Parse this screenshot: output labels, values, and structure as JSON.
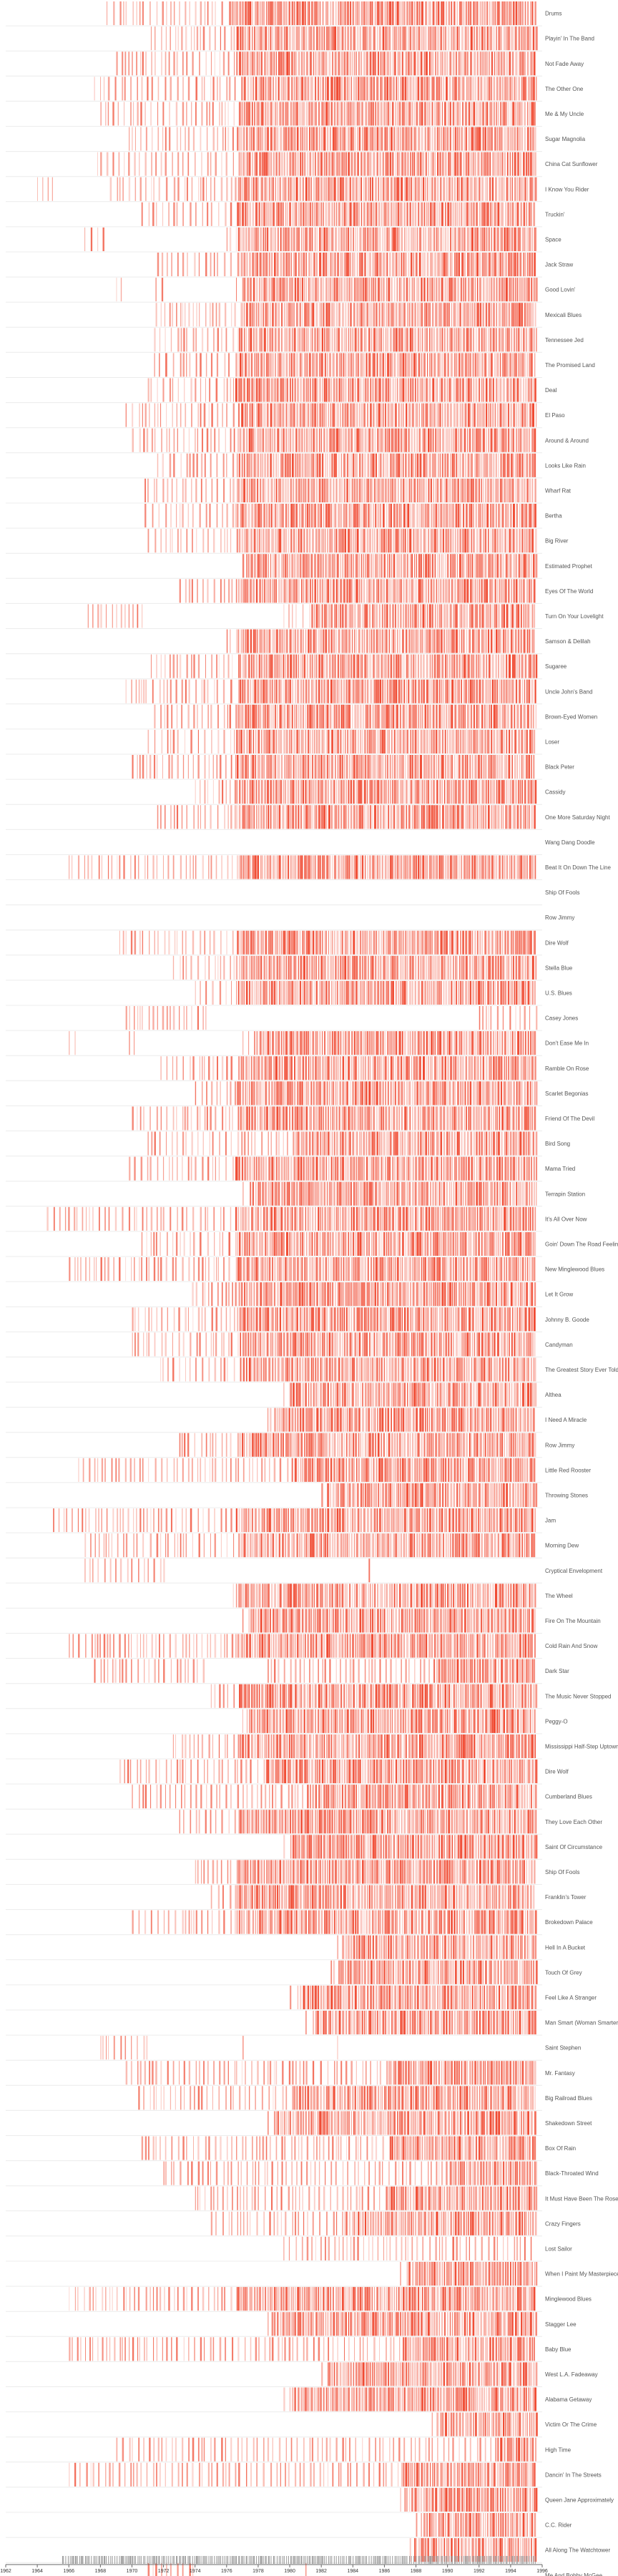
{
  "chart_data": {
    "type": "heatmap",
    "mark_color": "#f04a32",
    "rug_color": "#999999",
    "label_color": "#555555",
    "xlim": [
      1962,
      1996
    ],
    "x_ticks": [
      {
        "value": 1962,
        "label": "1962"
      },
      {
        "value": 1964,
        "label": "1964"
      },
      {
        "value": 1966,
        "label": "1966"
      },
      {
        "value": 1968,
        "label": "1968"
      },
      {
        "value": 1970,
        "label": "1970"
      },
      {
        "value": 1972,
        "label": "1972"
      },
      {
        "value": 1974,
        "label": "1974"
      },
      {
        "value": 1976,
        "label": "1976"
      },
      {
        "value": 1978,
        "label": "1978"
      },
      {
        "value": 1980,
        "label": "1980"
      },
      {
        "value": 1982,
        "label": "1982"
      },
      {
        "value": 1984,
        "label": "1984"
      },
      {
        "value": 1986,
        "label": "1986"
      },
      {
        "value": 1988,
        "label": "1988"
      },
      {
        "value": 1990,
        "label": "1990"
      },
      {
        "value": 1992,
        "label": "1992"
      },
      {
        "value": 1994,
        "label": "1994"
      },
      {
        "value": 1996,
        "label": "1996"
      }
    ],
    "series": [
      {
        "name": "Drums",
        "spans": [
          [
            1968.4,
            1995.6
          ]
        ],
        "dense_from": 1976.0
      },
      {
        "name": "Playin' In The Band",
        "spans": [
          [
            1971.2,
            1995.6
          ]
        ],
        "dense_from": 1976.5
      },
      {
        "name": "Not Fade Away",
        "spans": [
          [
            1969.0,
            1995.6
          ]
        ],
        "dense_from": 1976.5
      },
      {
        "name": "The Other One",
        "spans": [
          [
            1967.6,
            1995.6
          ]
        ],
        "dense_from": 1976.5
      },
      {
        "name": "Me & My Uncle",
        "spans": [
          [
            1968.0,
            1995.6
          ]
        ],
        "dense_from": 1976.5
      },
      {
        "name": "Sugar Magnolia",
        "spans": [
          [
            1969.8,
            1995.6
          ]
        ],
        "dense_from": 1976.5
      },
      {
        "name": "China Cat Sunflower",
        "spans": [
          [
            1967.8,
            1995.6
          ]
        ],
        "dense_from": 1976.5
      },
      {
        "name": "I Know You Rider",
        "spans": [
          [
            1964.0,
            1965.0
          ],
          [
            1968.6,
            1995.6
          ]
        ],
        "dense_from": 1976.5
      },
      {
        "name": "Truckin'",
        "spans": [
          [
            1970.6,
            1995.6
          ]
        ],
        "dense_from": 1976.5
      },
      {
        "name": "Space",
        "spans": [
          [
            1967.0,
            1968.4
          ],
          [
            1976.0,
            1995.6
          ]
        ],
        "dense_from": 1976.6
      },
      {
        "name": "Jack Straw",
        "spans": [
          [
            1971.6,
            1995.6
          ]
        ],
        "dense_from": 1976.5
      },
      {
        "name": "Good Lovin'",
        "spans": [
          [
            1969.0,
            1969.6
          ],
          [
            1971.5,
            1972.0
          ],
          [
            1976.6,
            1995.6
          ]
        ],
        "dense_from": 1976.8
      },
      {
        "name": "Mexicali Blues",
        "spans": [
          [
            1971.5,
            1995.6
          ]
        ],
        "dense_from": 1976.5
      },
      {
        "name": "Tennessee Jed",
        "spans": [
          [
            1971.4,
            1995.6
          ]
        ],
        "dense_from": 1976.5
      },
      {
        "name": "The Promised Land",
        "spans": [
          [
            1971.4,
            1995.6
          ]
        ],
        "dense_from": 1976.5
      },
      {
        "name": "Deal",
        "spans": [
          [
            1971.0,
            1995.6
          ]
        ],
        "dense_from": 1976.5
      },
      {
        "name": "El Paso",
        "spans": [
          [
            1969.6,
            1995.6
          ]
        ],
        "dense_from": 1976.5
      },
      {
        "name": "Around & Around",
        "spans": [
          [
            1970.0,
            1995.6
          ]
        ],
        "dense_from": 1976.5
      },
      {
        "name": "Looks Like Rain",
        "spans": [
          [
            1971.6,
            1995.6
          ]
        ],
        "dense_from": 1976.5
      },
      {
        "name": "Wharf Rat",
        "spans": [
          [
            1970.8,
            1995.6
          ]
        ],
        "dense_from": 1976.5
      },
      {
        "name": "Bertha",
        "spans": [
          [
            1970.8,
            1995.6
          ]
        ],
        "dense_from": 1976.5
      },
      {
        "name": "Big River",
        "spans": [
          [
            1971.0,
            1995.6
          ]
        ],
        "dense_from": 1976.5
      },
      {
        "name": "Estimated Prophet",
        "spans": [
          [
            1977.0,
            1995.6
          ]
        ],
        "dense_from": 1977.2
      },
      {
        "name": "Eyes Of The World",
        "spans": [
          [
            1973.0,
            1995.6
          ]
        ],
        "dense_from": 1976.5
      },
      {
        "name": "Turn On Your Lovelight",
        "spans": [
          [
            1967.2,
            1971.0
          ],
          [
            1979.6,
            1995.6
          ]
        ],
        "dense_from": 1981.0
      },
      {
        "name": "Samson & Delilah",
        "spans": [
          [
            1976.0,
            1995.6
          ]
        ],
        "dense_from": 1976.5
      },
      {
        "name": "Sugaree",
        "spans": [
          [
            1971.2,
            1995.6
          ]
        ],
        "dense_from": 1976.5
      },
      {
        "name": "Uncle John's Band",
        "spans": [
          [
            1969.6,
            1995.6
          ]
        ],
        "dense_from": 1976.5
      },
      {
        "name": "Brown-Eyed Women",
        "spans": [
          [
            1971.4,
            1995.6
          ]
        ],
        "dense_from": 1976.5
      },
      {
        "name": "Loser",
        "spans": [
          [
            1971.0,
            1995.6
          ]
        ],
        "dense_from": 1976.5
      },
      {
        "name": "Black Peter",
        "spans": [
          [
            1970.0,
            1995.6
          ]
        ],
        "dense_from": 1976.5
      },
      {
        "name": "Cassidy",
        "spans": [
          [
            1974.0,
            1995.6
          ]
        ],
        "dense_from": 1976.5
      },
      {
        "name": "One More Saturday Night",
        "spans": [
          [
            1971.6,
            1995.6
          ]
        ],
        "dense_from": 1976.5
      },
      {
        "name": "Wang Dang Doodle",
        "spans": [],
        "dense_from": 1996.0
      },
      {
        "name": "Beat It On Down The Line",
        "spans": [
          [
            1966.0,
            1995.6
          ]
        ],
        "dense_from": 1976.5
      },
      {
        "name": "Ship Of Fools",
        "spans": [],
        "dense_from": 1996.0
      },
      {
        "name": "Row Jimmy",
        "spans": [],
        "dense_from": 1996.0
      },
      {
        "name": "Dire Wolf",
        "spans": [
          [
            1969.2,
            1995.6
          ]
        ],
        "dense_from": 1976.5
      },
      {
        "name": "Stella Blue",
        "spans": [
          [
            1972.6,
            1995.6
          ]
        ],
        "dense_from": 1976.5
      },
      {
        "name": "U.S. Blues",
        "spans": [
          [
            1974.0,
            1995.6
          ]
        ],
        "dense_from": 1976.5
      },
      {
        "name": "Casey Jones",
        "spans": [
          [
            1969.6,
            1974.8
          ],
          [
            1992.0,
            1995.6
          ]
        ],
        "dense_from": 1996.0
      },
      {
        "name": "Don't Ease Me In",
        "spans": [
          [
            1966.0,
            1966.4
          ],
          [
            1969.8,
            1970.2
          ],
          [
            1977.0,
            1995.6
          ]
        ],
        "dense_from": 1977.5
      },
      {
        "name": "Ramble On Rose",
        "spans": [
          [
            1971.8,
            1995.6
          ]
        ],
        "dense_from": 1976.5
      },
      {
        "name": "Scarlet Begonias",
        "spans": [
          [
            1974.0,
            1995.6
          ]
        ],
        "dense_from": 1976.5
      },
      {
        "name": "Friend Of The Devil",
        "spans": [
          [
            1970.0,
            1995.6
          ]
        ],
        "dense_from": 1976.5
      },
      {
        "name": "Bird Song",
        "spans": [
          [
            1971.0,
            1995.6
          ]
        ],
        "dense_from": 1980.0
      },
      {
        "name": "Mama Tried",
        "spans": [
          [
            1969.8,
            1995.6
          ]
        ],
        "dense_from": 1976.5
      },
      {
        "name": "Terrapin Station",
        "spans": [
          [
            1977.0,
            1995.6
          ]
        ],
        "dense_from": 1977.2
      },
      {
        "name": "It's All Over Now",
        "spans": [
          [
            1964.6,
            1995.6
          ]
        ],
        "dense_from": 1976.5
      },
      {
        "name": "Goin' Down The Road Feelin'",
        "spans": [
          [
            1970.6,
            1995.6
          ]
        ],
        "dense_from": 1976.5
      },
      {
        "name": "New Minglewood Blues",
        "spans": [
          [
            1966.0,
            1995.6
          ]
        ],
        "dense_from": 1976.5
      },
      {
        "name": "Let It Grow",
        "spans": [
          [
            1973.8,
            1995.6
          ]
        ],
        "dense_from": 1976.5
      },
      {
        "name": "Johnny B. Goode",
        "spans": [
          [
            1970.0,
            1995.6
          ]
        ],
        "dense_from": 1976.5
      },
      {
        "name": "Candyman",
        "spans": [
          [
            1970.0,
            1995.6
          ]
        ],
        "dense_from": 1976.5
      },
      {
        "name": "The Greatest Story Ever Told",
        "spans": [
          [
            1971.8,
            1995.6
          ]
        ],
        "dense_from": 1976.5
      },
      {
        "name": "Althea",
        "spans": [
          [
            1979.6,
            1995.6
          ]
        ],
        "dense_from": 1979.8
      },
      {
        "name": "I Need A Miracle",
        "spans": [
          [
            1978.6,
            1995.6
          ]
        ],
        "dense_from": 1978.8
      },
      {
        "name": "Row Jimmy",
        "spans": [
          [
            1973.0,
            1995.6
          ]
        ],
        "dense_from": 1976.5
      },
      {
        "name": "Little Red Rooster",
        "spans": [
          [
            1966.6,
            1995.6
          ]
        ],
        "dense_from": 1980.0
      },
      {
        "name": "Throwing Stones",
        "spans": [
          [
            1982.0,
            1995.6
          ]
        ],
        "dense_from": 1982.2
      },
      {
        "name": "Jam",
        "spans": [
          [
            1965.0,
            1995.6
          ]
        ],
        "dense_from": 1976.5
      },
      {
        "name": "Morning Dew",
        "spans": [
          [
            1967.0,
            1995.6
          ]
        ],
        "dense_from": 1976.5
      },
      {
        "name": "Cryptical Envelopment",
        "spans": [
          [
            1967.0,
            1972.0
          ],
          [
            1985.0,
            1985.2
          ]
        ],
        "dense_from": 1996.0
      },
      {
        "name": "The Wheel",
        "spans": [
          [
            1976.4,
            1995.6
          ]
        ],
        "dense_from": 1976.6
      },
      {
        "name": "Fire On The Mountain",
        "spans": [
          [
            1977.0,
            1995.6
          ]
        ],
        "dense_from": 1977.2
      },
      {
        "name": "Cold Rain And Snow",
        "spans": [
          [
            1966.0,
            1995.6
          ]
        ],
        "dense_from": 1976.5
      },
      {
        "name": "Dark Star",
        "spans": [
          [
            1967.6,
            1974.6
          ],
          [
            1978.6,
            1995.6
          ]
        ],
        "dense_from": 1989.0
      },
      {
        "name": "The Music Never Stopped",
        "spans": [
          [
            1975.0,
            1995.6
          ]
        ],
        "dense_from": 1976.5
      },
      {
        "name": "Peggy-O",
        "spans": [
          [
            1977.0,
            1995.6
          ]
        ],
        "dense_from": 1977.2
      },
      {
        "name": "Mississippi Half-Step Uptown Toodeloo",
        "spans": [
          [
            1972.6,
            1995.6
          ]
        ],
        "dense_from": 1976.5
      },
      {
        "name": "Dire Wolf",
        "spans": [
          [
            1969.2,
            1995.6
          ]
        ],
        "dense_from": 1978.0
      },
      {
        "name": "Cumberland Blues",
        "spans": [
          [
            1970.0,
            1995.6
          ]
        ],
        "dense_from": 1981.0
      },
      {
        "name": "They Love Each Other",
        "spans": [
          [
            1973.0,
            1995.6
          ]
        ],
        "dense_from": 1976.5
      },
      {
        "name": "Saint Of Circumstance",
        "spans": [
          [
            1979.6,
            1995.6
          ]
        ],
        "dense_from": 1979.8
      },
      {
        "name": "Ship Of Fools",
        "spans": [
          [
            1974.0,
            1995.6
          ]
        ],
        "dense_from": 1976.5
      },
      {
        "name": "Franklin's Tower",
        "spans": [
          [
            1975.0,
            1995.6
          ]
        ],
        "dense_from": 1976.5
      },
      {
        "name": "Brokedown Palace",
        "spans": [
          [
            1970.0,
            1995.6
          ]
        ],
        "dense_from": 1976.5
      },
      {
        "name": "Hell In A Bucket",
        "spans": [
          [
            1983.0,
            1995.6
          ]
        ],
        "dense_from": 1983.2
      },
      {
        "name": "Touch Of Grey",
        "spans": [
          [
            1982.6,
            1995.6
          ]
        ],
        "dense_from": 1982.8
      },
      {
        "name": "Feel Like A Stranger",
        "spans": [
          [
            1980.0,
            1995.6
          ]
        ],
        "dense_from": 1980.2
      },
      {
        "name": "Man Smart (Woman Smarter)",
        "spans": [
          [
            1981.0,
            1995.6
          ]
        ],
        "dense_from": 1981.2
      },
      {
        "name": "Saint Stephen",
        "spans": [
          [
            1968.0,
            1971.0
          ],
          [
            1977.0,
            1977.4
          ],
          [
            1983.0,
            1983.2
          ]
        ],
        "dense_from": 1996.0
      },
      {
        "name": "Mr. Fantasy",
        "spans": [
          [
            1969.6,
            1995.6
          ]
        ],
        "dense_from": 1986.0
      },
      {
        "name": "Big Railroad Blues",
        "spans": [
          [
            1970.4,
            1995.6
          ]
        ],
        "dense_from": 1980.0
      },
      {
        "name": "Shakedown Street",
        "spans": [
          [
            1978.6,
            1995.6
          ]
        ],
        "dense_from": 1978.8
      },
      {
        "name": "Box Of Rain",
        "spans": [
          [
            1970.6,
            1995.6
          ]
        ],
        "dense_from": 1986.0
      },
      {
        "name": "Black-Throated Wind",
        "spans": [
          [
            1972.0,
            1995.6
          ]
        ],
        "dense_from": 1990.0
      },
      {
        "name": "It Must Have Been The Roses",
        "spans": [
          [
            1974.0,
            1995.6
          ]
        ],
        "dense_from": 1986.0
      },
      {
        "name": "Crazy Fingers",
        "spans": [
          [
            1975.0,
            1995.6
          ]
        ],
        "dense_from": 1983.0
      },
      {
        "name": "Lost Sailor",
        "spans": [
          [
            1979.6,
            1995.6
          ]
        ],
        "dense_from": 1996.0
      },
      {
        "name": "When I Paint My Masterpiece",
        "spans": [
          [
            1987.0,
            1995.6
          ]
        ],
        "dense_from": 1987.2
      },
      {
        "name": "Minglewood Blues",
        "spans": [
          [
            1966.0,
            1995.6
          ]
        ],
        "dense_from": 1976.5
      },
      {
        "name": "Stagger Lee",
        "spans": [
          [
            1978.6,
            1995.6
          ]
        ],
        "dense_from": 1978.8
      },
      {
        "name": "Baby Blue",
        "spans": [
          [
            1966.0,
            1995.6
          ]
        ],
        "dense_from": 1987.0
      },
      {
        "name": "West L.A. Fadeaway",
        "spans": [
          [
            1982.0,
            1995.6
          ]
        ],
        "dense_from": 1982.2
      },
      {
        "name": "Alabama Getaway",
        "spans": [
          [
            1979.6,
            1995.6
          ]
        ],
        "dense_from": 1979.8
      },
      {
        "name": "Victim Or The Crime",
        "spans": [
          [
            1989.0,
            1995.6
          ]
        ],
        "dense_from": 1989.2
      },
      {
        "name": "High Time",
        "spans": [
          [
            1969.0,
            1995.6
          ]
        ],
        "dense_from": 1993.0
      },
      {
        "name": "Dancin' In The Streets",
        "spans": [
          [
            1966.0,
            1995.6
          ]
        ],
        "dense_from": 1987.0
      },
      {
        "name": "Queen Jane Approximately",
        "spans": [
          [
            1987.0,
            1995.6
          ]
        ],
        "dense_from": 1987.2
      },
      {
        "name": "C.C. Rider",
        "spans": [
          [
            1988.0,
            1995.6
          ]
        ],
        "dense_from": 1988.2
      },
      {
        "name": "All Along The Watchtower",
        "spans": [
          [
            1987.6,
            1995.6
          ]
        ],
        "dense_from": 1987.8
      },
      {
        "name": "Me And Bobby McGee",
        "spans": [
          [
            1971.0,
            1974.0
          ],
          [
            1981.0,
            1981.2
          ]
        ],
        "dense_from": 1996.0
      }
    ],
    "rug": {
      "start": 1965.6,
      "end": 1995.6
    }
  }
}
